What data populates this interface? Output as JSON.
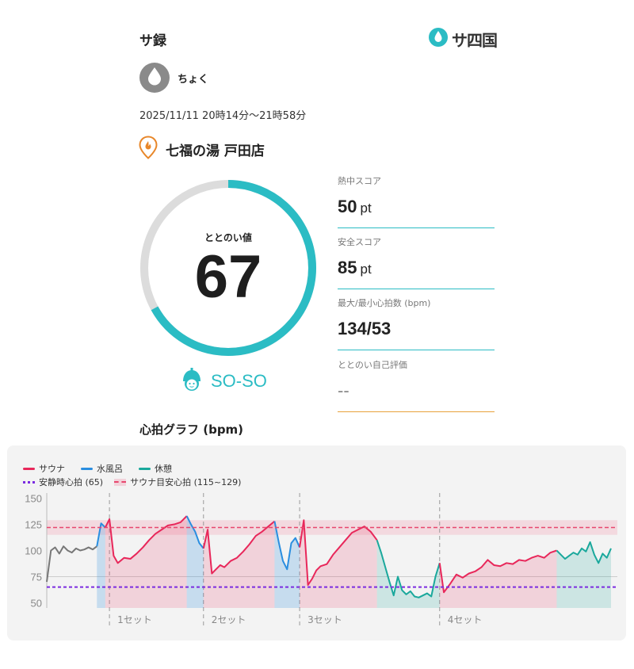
{
  "header": {
    "title": "サ録",
    "logo_text": "サ四国"
  },
  "user": {
    "name": "ちょく"
  },
  "session": {
    "datetime": "2025/11/11 20時14分～21時58分",
    "facility": "七福の湯 戸田店"
  },
  "score": {
    "label": "ととのい値",
    "value": "67",
    "fraction": 0.67,
    "status": "SO-SO"
  },
  "metrics": [
    {
      "label": "熱中スコア",
      "value": "50",
      "unit": "pt"
    },
    {
      "label": "安全スコア",
      "value": "85",
      "unit": "pt"
    },
    {
      "label": "最大/最小心拍数 (bpm)",
      "value": "134/53",
      "unit": ""
    },
    {
      "label": "ととのい自己評価",
      "value": "--",
      "unit": ""
    }
  ],
  "graph": {
    "title": "心拍グラフ (bpm)",
    "legend": {
      "sauna": "サウナ",
      "water": "水風呂",
      "rest": "休憩",
      "resting_hr": "安静時心拍 (65)",
      "target": "サウナ目安心拍 (115~129)"
    }
  },
  "colors": {
    "accent": "#2bbcc4",
    "sauna": "#e8275a",
    "water": "#2a8ee0",
    "rest": "#1aa89c",
    "resting": "#7b2ce0",
    "pending": "#e8a23c"
  },
  "chart_data": {
    "type": "line",
    "ylabel": "",
    "y_ticks": [
      150,
      125,
      100,
      75,
      50
    ],
    "ylim": [
      45,
      155
    ],
    "resting_hr": 65,
    "target_band": [
      115,
      129
    ],
    "set_labels": [
      "1セット",
      "2セット",
      "3セット",
      "4セット"
    ],
    "segments": [
      {
        "phase": "pre",
        "points": [
          [
            0,
            70
          ],
          [
            2,
            100
          ],
          [
            4,
            103
          ],
          [
            6,
            97
          ],
          [
            8,
            104
          ],
          [
            10,
            100
          ],
          [
            12,
            98
          ],
          [
            14,
            102
          ],
          [
            16,
            100
          ],
          [
            18,
            101
          ],
          [
            20,
            103
          ],
          [
            22,
            101
          ],
          [
            24,
            104
          ]
        ]
      },
      {
        "phase": "water",
        "points": [
          [
            24,
            104
          ],
          [
            26,
            126
          ],
          [
            28,
            122
          ]
        ]
      },
      {
        "phase": "sauna",
        "points": [
          [
            28,
            122
          ],
          [
            30,
            130
          ],
          [
            32,
            95
          ],
          [
            34,
            88
          ],
          [
            37,
            93
          ],
          [
            40,
            92
          ],
          [
            43,
            97
          ],
          [
            46,
            103
          ],
          [
            49,
            110
          ],
          [
            52,
            116
          ],
          [
            55,
            120
          ],
          [
            58,
            124
          ],
          [
            61,
            125
          ],
          [
            64,
            127
          ],
          [
            67,
            133
          ]
        ]
      },
      {
        "phase": "water",
        "points": [
          [
            67,
            133
          ],
          [
            69,
            125
          ],
          [
            71,
            118
          ],
          [
            73,
            107
          ],
          [
            75,
            102
          ]
        ]
      },
      {
        "phase": "sauna",
        "points": [
          [
            75,
            102
          ],
          [
            77,
            120
          ],
          [
            79,
            78
          ],
          [
            81,
            82
          ],
          [
            83,
            86
          ],
          [
            85,
            84
          ],
          [
            88,
            90
          ],
          [
            91,
            93
          ],
          [
            94,
            99
          ],
          [
            97,
            106
          ],
          [
            100,
            114
          ],
          [
            103,
            118
          ],
          [
            106,
            123
          ],
          [
            109,
            128
          ]
        ]
      },
      {
        "phase": "water",
        "points": [
          [
            109,
            128
          ],
          [
            111,
            108
          ],
          [
            113,
            90
          ],
          [
            115,
            82
          ],
          [
            117,
            107
          ],
          [
            119,
            112
          ],
          [
            121,
            103
          ]
        ]
      },
      {
        "phase": "sauna",
        "points": [
          [
            121,
            103
          ],
          [
            123,
            129
          ],
          [
            125,
            67
          ],
          [
            127,
            73
          ],
          [
            129,
            81
          ],
          [
            131,
            85
          ],
          [
            134,
            87
          ],
          [
            137,
            96
          ],
          [
            140,
            103
          ],
          [
            143,
            110
          ],
          [
            146,
            117
          ],
          [
            149,
            120
          ],
          [
            152,
            123
          ],
          [
            155,
            118
          ],
          [
            158,
            110
          ]
        ]
      },
      {
        "phase": "rest",
        "points": [
          [
            158,
            110
          ],
          [
            160,
            98
          ],
          [
            162,
            84
          ],
          [
            164,
            70
          ],
          [
            166,
            57
          ],
          [
            168,
            75
          ],
          [
            170,
            62
          ],
          [
            172,
            58
          ],
          [
            174,
            61
          ],
          [
            176,
            56
          ],
          [
            178,
            55
          ],
          [
            180,
            57
          ],
          [
            182,
            59
          ],
          [
            184,
            56
          ],
          [
            186,
            75
          ],
          [
            188,
            88
          ]
        ]
      },
      {
        "phase": "sauna",
        "points": [
          [
            188,
            88
          ],
          [
            190,
            60
          ],
          [
            193,
            68
          ],
          [
            196,
            77
          ],
          [
            199,
            74
          ],
          [
            202,
            78
          ],
          [
            205,
            80
          ],
          [
            208,
            84
          ],
          [
            211,
            91
          ],
          [
            214,
            86
          ],
          [
            217,
            85
          ],
          [
            220,
            88
          ],
          [
            223,
            87
          ],
          [
            226,
            91
          ],
          [
            229,
            90
          ],
          [
            232,
            93
          ],
          [
            235,
            95
          ],
          [
            238,
            93
          ],
          [
            241,
            98
          ],
          [
            244,
            100
          ]
        ]
      },
      {
        "phase": "rest",
        "points": [
          [
            244,
            100
          ],
          [
            246,
            96
          ],
          [
            248,
            92
          ],
          [
            250,
            95
          ],
          [
            252,
            98
          ],
          [
            254,
            96
          ],
          [
            256,
            102
          ],
          [
            258,
            99
          ],
          [
            260,
            108
          ],
          [
            262,
            96
          ],
          [
            264,
            88
          ],
          [
            266,
            97
          ],
          [
            268,
            93
          ],
          [
            270,
            102
          ]
        ]
      }
    ],
    "set_boundaries": [
      30,
      75,
      121,
      188
    ]
  }
}
